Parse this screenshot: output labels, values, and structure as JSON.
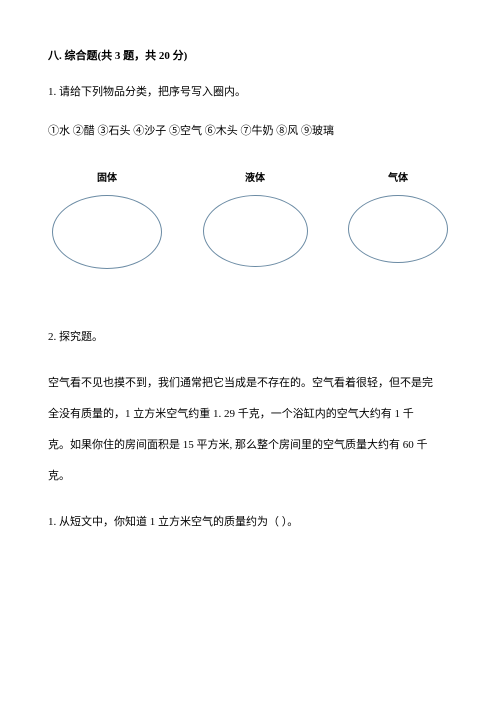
{
  "section": {
    "heading": "八. 综合题(共 3 题，共 20 分)",
    "q1": {
      "prompt": "1. 请给下列物品分类，把序号写入圈内。",
      "items": "①水  ②醋  ③石头  ④沙子  ⑤空气  ⑥木头  ⑦牛奶  ⑧风  ⑨玻璃",
      "categories": {
        "label1": "固体",
        "label2": "液体",
        "label3": "气体"
      },
      "ellipse_border_color": "#6b8ba4"
    },
    "q2": {
      "title": "2. 探究题。",
      "passage_l1": "空气看不见也摸不到，我们通常把它当成是不存在的。空气看着很轻，但不是完",
      "passage_l2": "全没有质量的，1 立方米空气约重 1. 29 千克，一个浴缸内的空气大约有 1 千",
      "passage_l3": "克。如果你住的房间面积是 15 平方米, 那么整个房间里的空气质量大约有 60 千",
      "passage_l4": "克。",
      "sub1": "1. 从短文中，你知道 1 立方米空气的质量约为（        ）。"
    }
  },
  "style": {
    "background_color": "#ffffff",
    "text_color": "#000000",
    "body_fontsize": 11,
    "title_fontweight": "bold"
  }
}
